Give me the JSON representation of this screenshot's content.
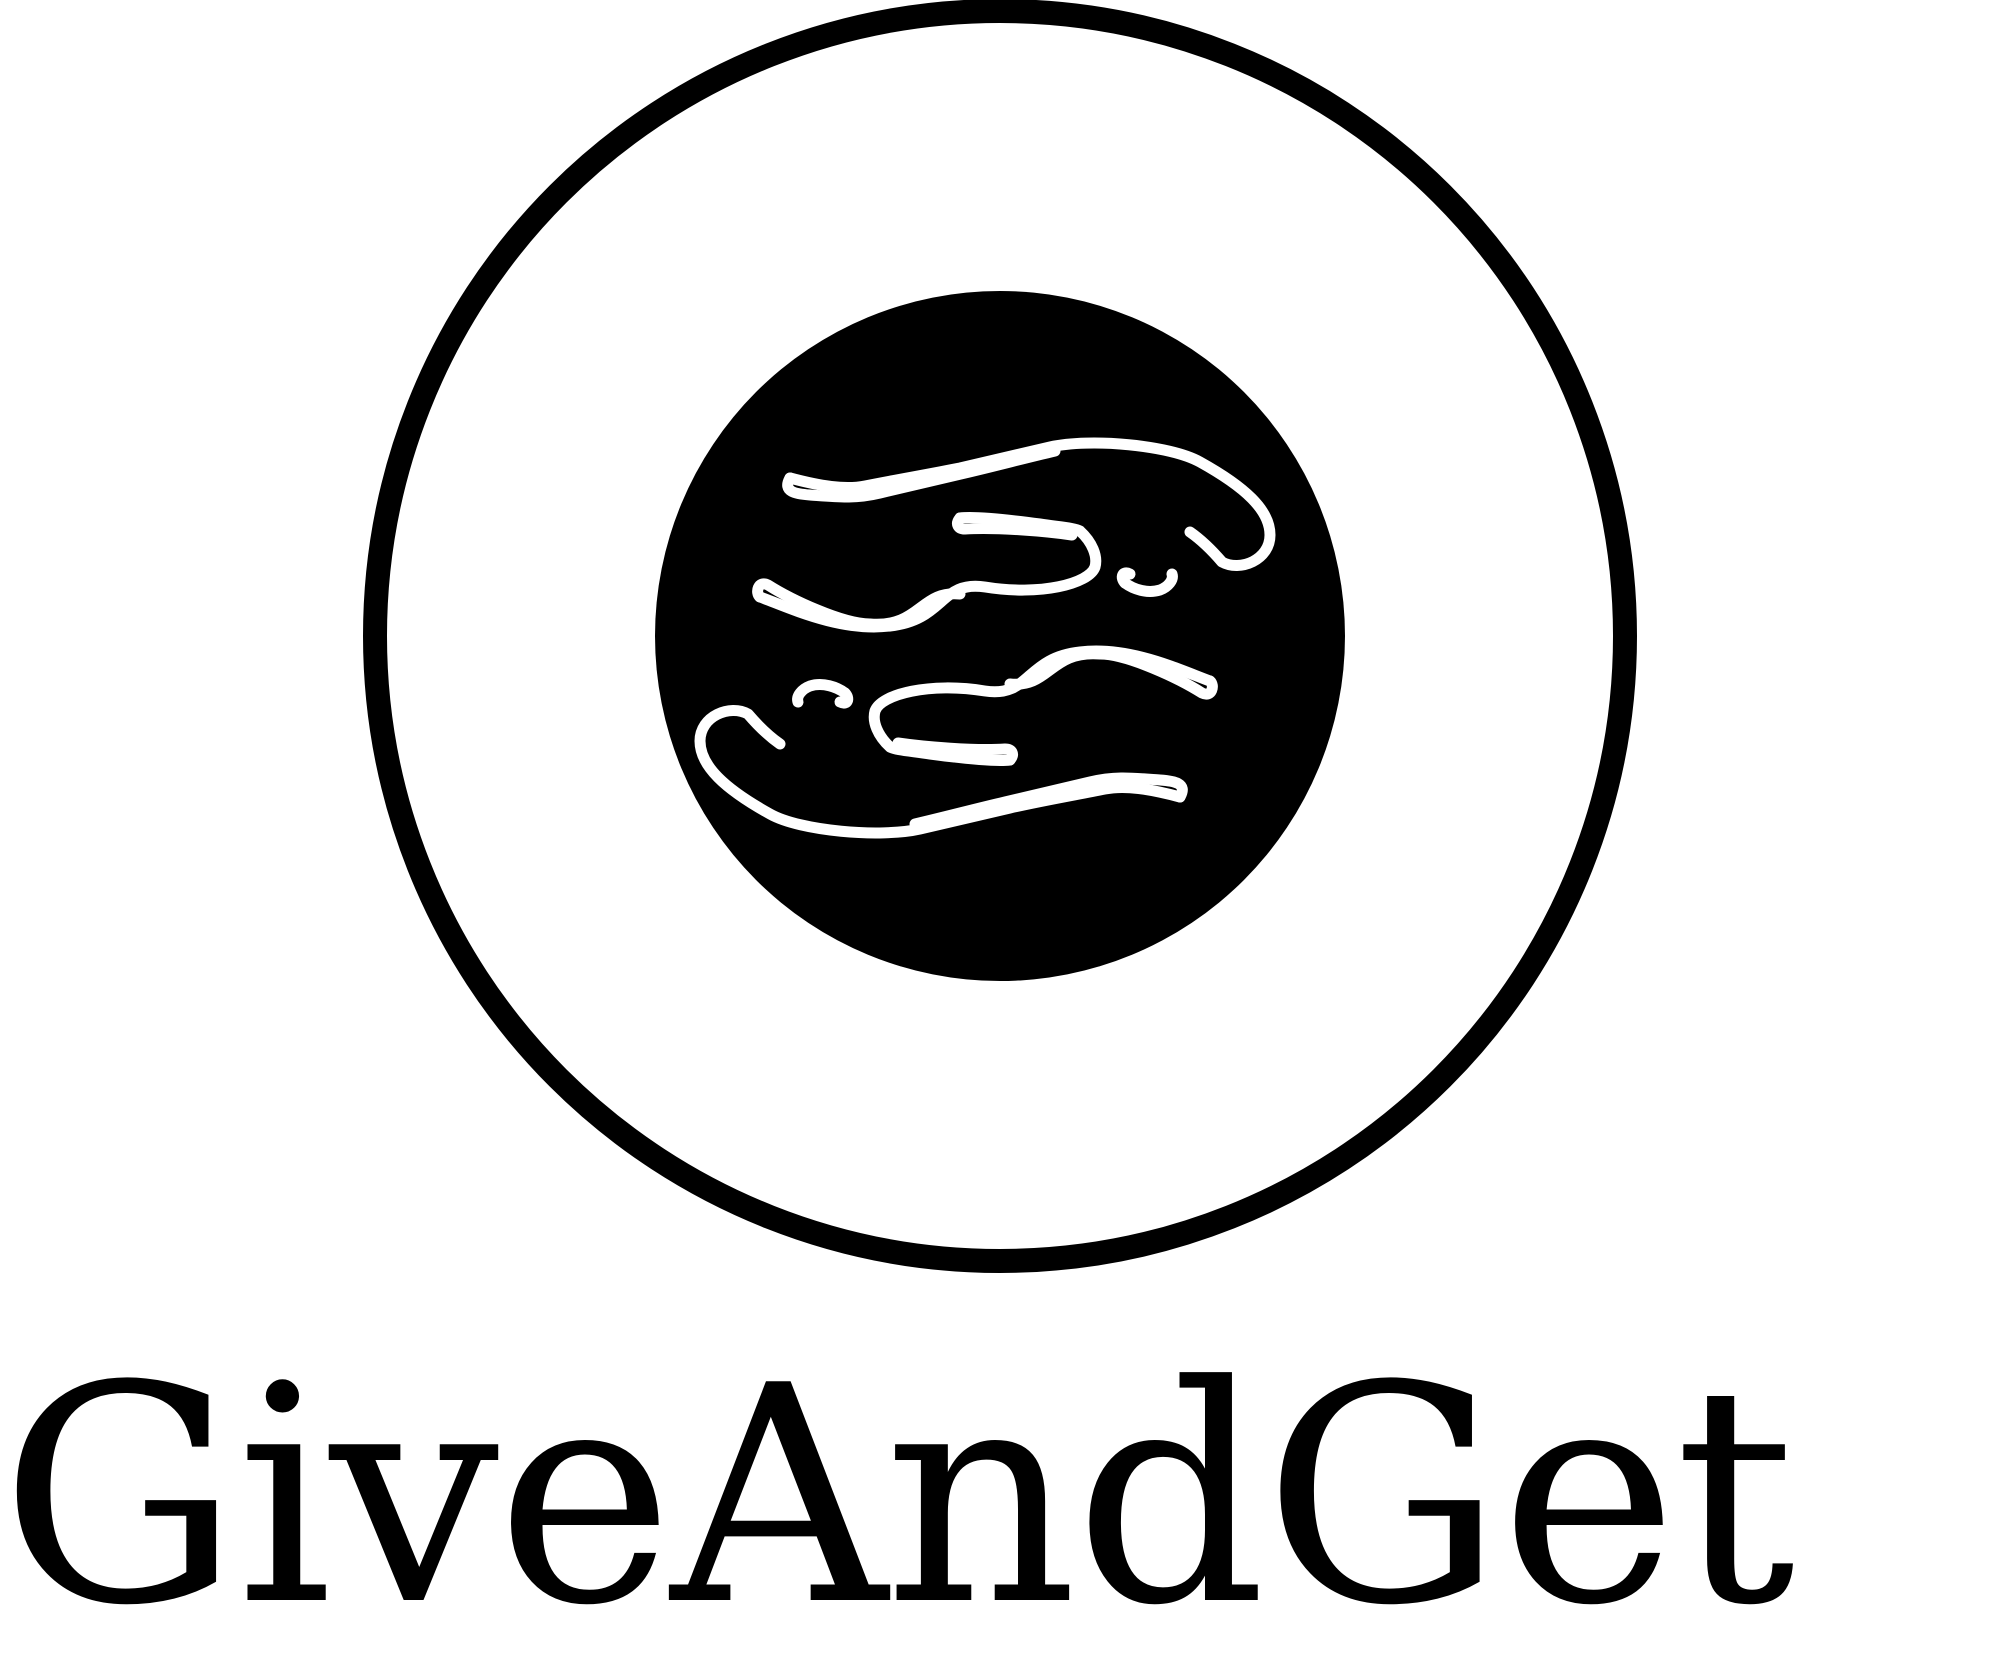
{
  "brand": {
    "name": "GiveAndGet",
    "ink_color": "#000000",
    "paper_color": "#ffffff"
  },
  "emblem": {
    "icon": "two-hands-reaching-icon"
  }
}
